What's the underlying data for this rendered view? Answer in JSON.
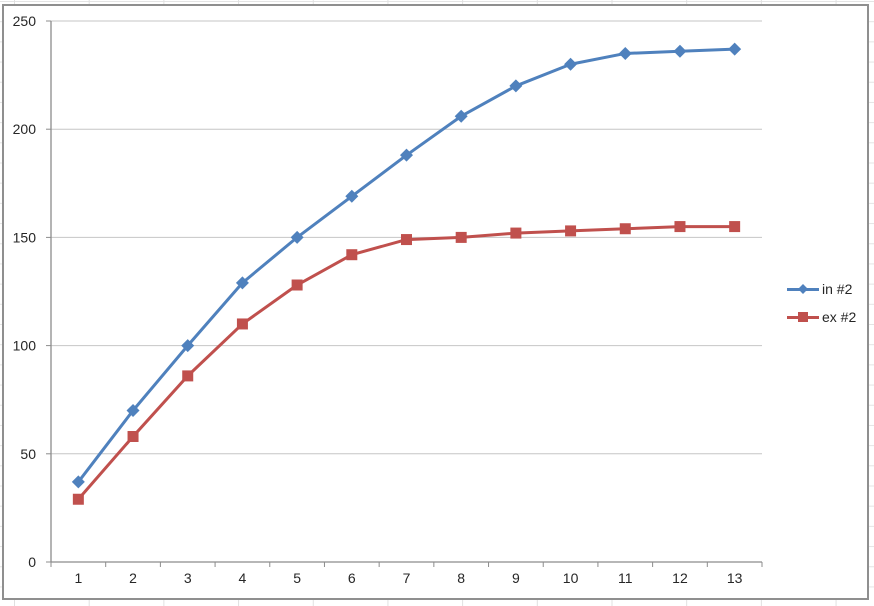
{
  "chart_data": {
    "type": "line",
    "title": "",
    "xlabel": "",
    "ylabel": "",
    "x_categories": [
      "1",
      "2",
      "3",
      "4",
      "5",
      "6",
      "7",
      "8",
      "9",
      "10",
      "11",
      "12",
      "13"
    ],
    "series": [
      {
        "name": "in #2",
        "color": "#4F81BD",
        "marker": "diamond",
        "values": [
          37,
          70,
          100,
          129,
          150,
          169,
          188,
          206,
          220,
          230,
          235,
          236,
          237
        ]
      },
      {
        "name": "ex #2",
        "color": "#C0504D",
        "marker": "square",
        "values": [
          29,
          58,
          86,
          110,
          128,
          142,
          149,
          150,
          152,
          153,
          154,
          155,
          155
        ]
      }
    ],
    "ylim": [
      0,
      250
    ],
    "ytick_step": 50,
    "y_tick_labels": [
      "0",
      "50",
      "100",
      "150",
      "200",
      "250"
    ],
    "grid": true,
    "legend_position": "right",
    "colors": {
      "gridline": "#c6c6c6",
      "axis": "#8c8c8c",
      "tick_label": "#262626",
      "chart_border": "#8f8f8f",
      "sheet_gridline": "#e2e2e2",
      "plot_background": "#ffffff"
    }
  }
}
